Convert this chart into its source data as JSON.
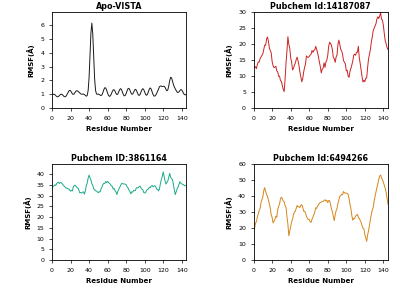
{
  "titles": [
    "Apo-VISTA",
    "Pubchem Id:14187087",
    "Pubchem ID:3861164",
    "Pubchem Id:6494266"
  ],
  "colors": [
    "#1a1a1a",
    "#cc2222",
    "#1aaa8a",
    "#d4861a"
  ],
  "xlabel": "Residue Number",
  "ylabel": "RMSF(Å)",
  "xlim": [
    0,
    145
  ],
  "ylims": [
    [
      0,
      7
    ],
    [
      0,
      30
    ],
    [
      0,
      45
    ],
    [
      0,
      60
    ]
  ],
  "xticks": [
    0,
    20,
    40,
    60,
    80,
    100,
    120,
    140
  ],
  "yticks_0": [
    0,
    1,
    2,
    3,
    4,
    5,
    6
  ],
  "yticks_1": [
    0,
    5,
    10,
    15,
    20,
    25,
    30
  ],
  "yticks_2": [
    0,
    5,
    10,
    15,
    20,
    25,
    30,
    35,
    40
  ],
  "yticks_3": [
    0,
    10,
    20,
    30,
    40,
    50,
    60
  ],
  "n_points": 145
}
